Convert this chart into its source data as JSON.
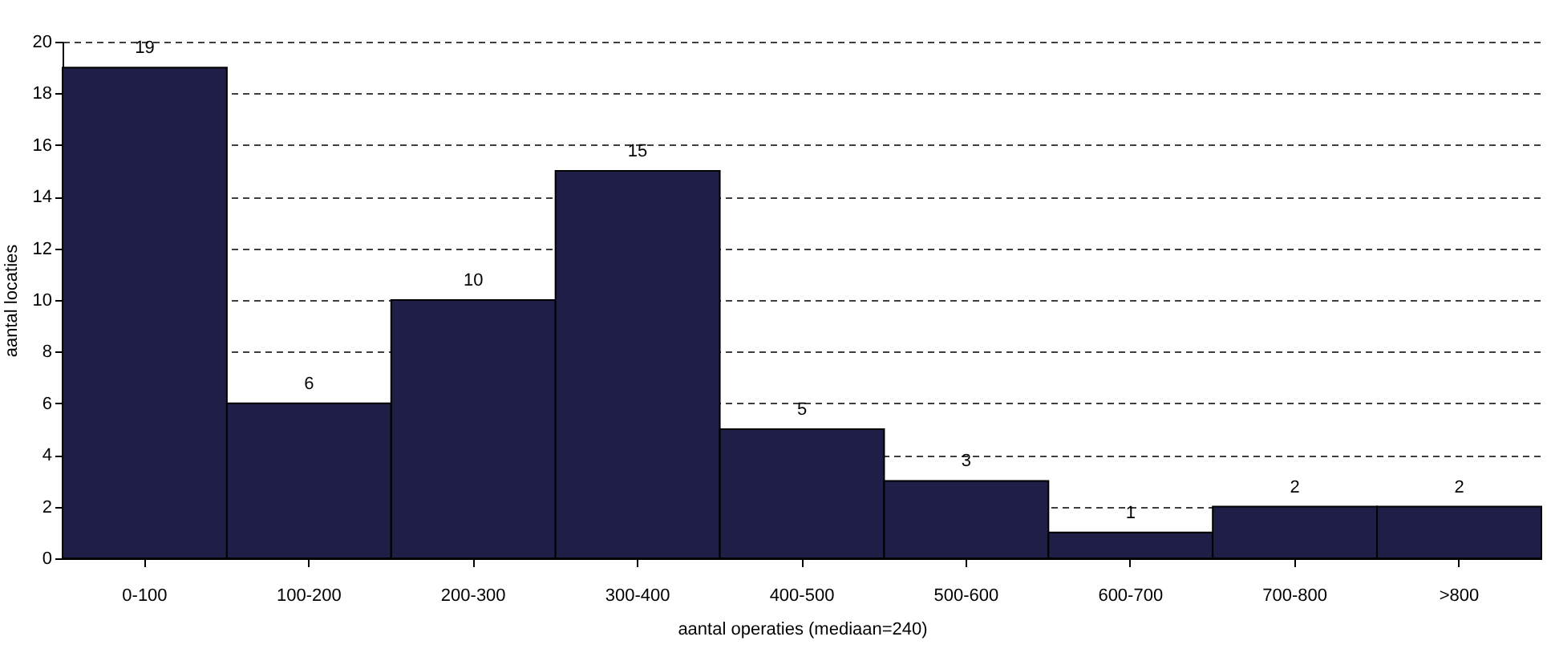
{
  "chart_data": {
    "type": "bar",
    "xlabel": "aantal operaties (mediaan=240)",
    "ylabel": "aantal locaties",
    "categories": [
      "0-100",
      "100-200",
      "200-300",
      "300-400",
      "400-500",
      "500-600",
      "600-700",
      "700-800",
      ">800"
    ],
    "values": [
      19,
      6,
      10,
      15,
      5,
      3,
      1,
      2,
      2
    ],
    "color": "#1e1e46",
    "ylim": [
      0,
      20
    ],
    "yticks": [
      0,
      2,
      4,
      6,
      8,
      10,
      12,
      14,
      16,
      18,
      20
    ],
    "grid": "y",
    "data_labels": true
  }
}
